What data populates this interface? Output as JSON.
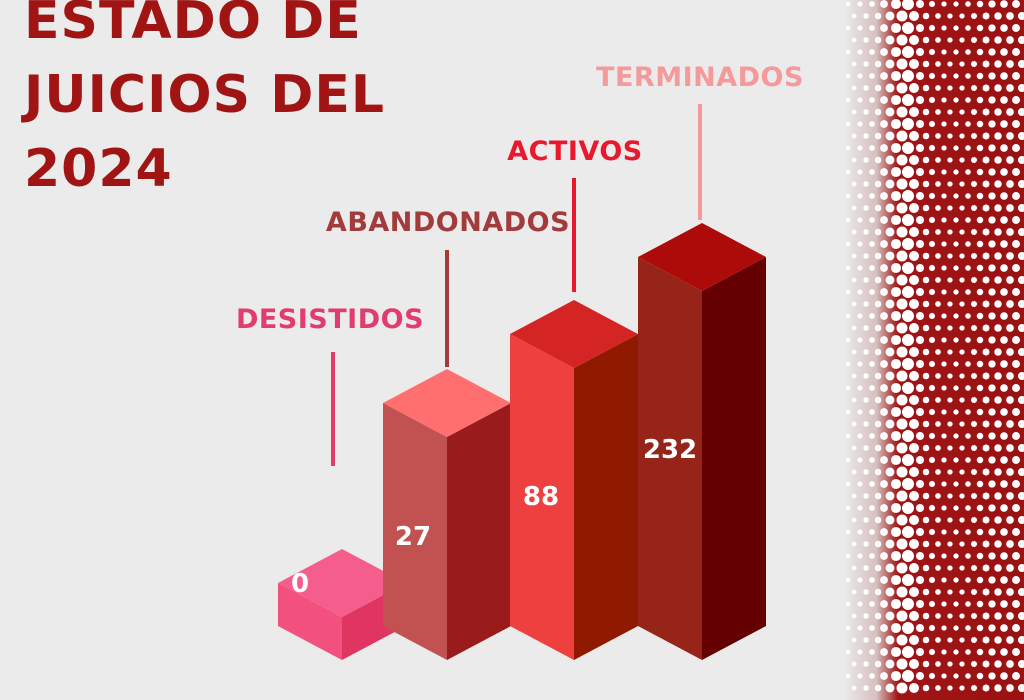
{
  "title_lines": [
    "ESTADO DE",
    "JUICIOS DEL",
    "2024"
  ],
  "chart_data": {
    "type": "bar",
    "title": "ESTADO DE JUICIOS DEL 2024",
    "categories": [
      "DESISTIDOS",
      "ABANDONADOS",
      "ACTIVOS",
      "TERMINADOS"
    ],
    "values": [
      0,
      27,
      88,
      232
    ],
    "value_labels": [
      "0",
      "27",
      "88",
      "232"
    ],
    "label_colors": [
      "#e03c6e",
      "#a23c3c",
      "#e8192c",
      "#f59a9a"
    ],
    "bar_colors": [
      {
        "top": "#f55d8c",
        "front": "#f2507e",
        "side": "#e03563"
      },
      {
        "top": "#ff6f6f",
        "front": "#c25252",
        "side": "#991b1b"
      },
      {
        "top": "#d42424",
        "front": "#ef4040",
        "side": "#8f1a00"
      },
      {
        "top": "#ad0a0a",
        "front": "#962418",
        "side": "#640000"
      }
    ],
    "grid": false,
    "legend": "none"
  },
  "background": "#ebebeb",
  "accent": "#a01414"
}
